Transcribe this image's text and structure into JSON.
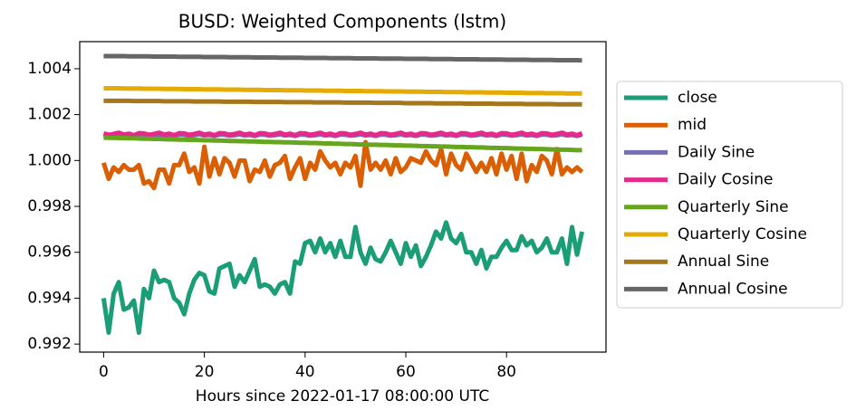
{
  "chart_data": {
    "type": "line",
    "title": "BUSD: Weighted Components (lstm)",
    "x_label": "Hours since 2022-01-17 08:00:00 UTC",
    "x": [
      0,
      1,
      2,
      3,
      4,
      5,
      6,
      7,
      8,
      9,
      10,
      11,
      12,
      13,
      14,
      15,
      16,
      17,
      18,
      19,
      20,
      21,
      22,
      23,
      24,
      25,
      26,
      27,
      28,
      29,
      30,
      31,
      32,
      33,
      34,
      35,
      36,
      37,
      38,
      39,
      40,
      41,
      42,
      43,
      44,
      45,
      46,
      47,
      48,
      49,
      50,
      51,
      52,
      53,
      54,
      55,
      56,
      57,
      58,
      59,
      60,
      61,
      62,
      63,
      64,
      65,
      66,
      67,
      68,
      69,
      70,
      71,
      72,
      73,
      74,
      75,
      76,
      77,
      78,
      79,
      80,
      81,
      82,
      83,
      84,
      85,
      86,
      87,
      88,
      89,
      90,
      91,
      92,
      93,
      94,
      95
    ],
    "xlim": [
      -4.75,
      99.75
    ],
    "xticks": [
      0,
      20,
      40,
      60,
      80
    ],
    "ylim": [
      0.99165,
      1.00518
    ],
    "yticks": [
      0.992,
      0.994,
      0.996,
      0.998,
      {
        "value": 1,
        "label": "1.000"
      },
      1.002,
      1.004
    ],
    "legend": "right",
    "series": [
      {
        "name": "close",
        "color": "#1b9e77",
        "values": [
          0.994,
          0.9925,
          0.9942,
          0.9947,
          0.9935,
          0.9936,
          0.9939,
          0.9925,
          0.9944,
          0.994,
          0.9952,
          0.9947,
          0.9948,
          0.9947,
          0.994,
          0.9938,
          0.9933,
          0.9942,
          0.9948,
          0.9951,
          0.995,
          0.9943,
          0.9942,
          0.9953,
          0.9954,
          0.9955,
          0.9945,
          0.995,
          0.9947,
          0.9952,
          0.9957,
          0.9945,
          0.9946,
          0.9945,
          0.9942,
          0.9946,
          0.9947,
          0.9942,
          0.9956,
          0.9955,
          0.9964,
          0.9965,
          0.996,
          0.9966,
          0.996,
          0.9964,
          0.9958,
          0.9965,
          0.9958,
          0.9958,
          0.9971,
          0.996,
          0.9955,
          0.9962,
          0.9957,
          0.9956,
          0.996,
          0.9965,
          0.996,
          0.9955,
          0.9964,
          0.9958,
          0.9963,
          0.9954,
          0.9958,
          0.9963,
          0.9969,
          0.9966,
          0.9973,
          0.9966,
          0.9964,
          0.9968,
          0.996,
          0.996,
          0.9955,
          0.9961,
          0.9953,
          0.9958,
          0.9958,
          0.9962,
          0.9965,
          0.9961,
          0.9961,
          0.9967,
          0.9963,
          0.9965,
          0.996,
          0.9962,
          0.9966,
          0.996,
          0.996,
          0.9966,
          0.9955,
          0.9971,
          0.9959,
          0.9969
        ]
      },
      {
        "name": "mid",
        "color": "#d95f02",
        "values": [
          0.9999,
          0.9992,
          0.9997,
          0.9995,
          0.9998,
          0.9996,
          0.9996,
          0.9998,
          0.999,
          0.9991,
          0.9988,
          0.9996,
          0.9996,
          0.999,
          0.9998,
          0.9998,
          1.0003,
          0.9995,
          0.9997,
          0.999,
          1.0006,
          0.9993,
          1.0001,
          0.9994,
          1.0001,
          0.9999,
          0.9993,
          1.0,
          1.0,
          0.9991,
          0.9996,
          0.9995,
          1.0,
          0.9993,
          0.9998,
          0.9999,
          1.0002,
          0.9992,
          0.9997,
          1.0001,
          0.9992,
          0.9999,
          0.9996,
          1.0004,
          1.0,
          0.9997,
          0.9999,
          0.9994,
          0.9999,
          0.9997,
          1.0002,
          0.9989,
          1.0008,
          0.9996,
          0.9999,
          0.9996,
          1.0,
          0.9994,
          1.0001,
          0.9995,
          0.9997,
          1.0001,
          1.0,
          0.9999,
          1.0004,
          1.0,
          0.9998,
          1.0005,
          0.9994,
          1.0003,
          0.9998,
          0.9996,
          1.0003,
          0.9999,
          0.9995,
          0.9999,
          0.9995,
          1.0001,
          0.9994,
          1.0003,
          0.9996,
          1.0002,
          0.9992,
          1.0003,
          0.9991,
          0.9998,
          0.9995,
          1.0002,
          1.0,
          0.9994,
          1.0005,
          0.9994,
          0.9997,
          0.9995,
          0.9997,
          0.9995
        ]
      },
      {
        "name": "Daily Sine",
        "color": "#7570b3",
        "values": [
          1.00112,
          1.00108,
          1.0011,
          1.00114,
          1.00109,
          1.00111,
          1.00107,
          1.00113,
          1.00112,
          1.00108,
          1.0011,
          1.00114,
          1.00109,
          1.00111,
          1.00107,
          1.00113,
          1.00112,
          1.00108,
          1.0011,
          1.00114,
          1.00109,
          1.00111,
          1.00107,
          1.00113,
          1.00112,
          1.00108,
          1.0011,
          1.00114,
          1.00109,
          1.00111,
          1.00107,
          1.00113,
          1.00112,
          1.00108,
          1.0011,
          1.00114,
          1.00109,
          1.00111,
          1.00107,
          1.00113,
          1.00112,
          1.00108,
          1.0011,
          1.00114,
          1.00109,
          1.00111,
          1.00107,
          1.00113,
          1.00112,
          1.00108,
          1.0011,
          1.00114,
          1.00109,
          1.00111,
          1.00107,
          1.00113,
          1.00112,
          1.00108,
          1.0011,
          1.00114,
          1.00109,
          1.00111,
          1.00107,
          1.00113,
          1.00112,
          1.00108,
          1.0011,
          1.00114,
          1.00109,
          1.00111,
          1.00107,
          1.00113,
          1.00112,
          1.00108,
          1.0011,
          1.00114,
          1.00109,
          1.00111,
          1.00107,
          1.00113,
          1.00112,
          1.00108,
          1.0011,
          1.00114,
          1.00109,
          1.00111,
          1.00107,
          1.00113,
          1.00112,
          1.00108,
          1.0011,
          1.00114,
          1.00109,
          1.00111,
          1.00107,
          1.00113
        ]
      },
      {
        "name": "Daily Cosine",
        "color": "#e7298a",
        "values": [
          1.00118,
          1.00112,
          1.00116,
          1.00121,
          1.00113,
          1.00117,
          1.0011,
          1.00119,
          1.00118,
          1.00112,
          1.00116,
          1.00121,
          1.00113,
          1.00117,
          1.0011,
          1.00119,
          1.00118,
          1.00112,
          1.00116,
          1.00121,
          1.00113,
          1.00117,
          1.0011,
          1.00119,
          1.00118,
          1.00112,
          1.00116,
          1.00121,
          1.00113,
          1.00117,
          1.0011,
          1.00119,
          1.00118,
          1.00112,
          1.00116,
          1.00121,
          1.00113,
          1.00117,
          1.0011,
          1.00119,
          1.00118,
          1.00112,
          1.00116,
          1.00121,
          1.00113,
          1.00117,
          1.0011,
          1.00119,
          1.00118,
          1.00112,
          1.00116,
          1.00121,
          1.00113,
          1.00117,
          1.0011,
          1.00119,
          1.00118,
          1.00112,
          1.00116,
          1.00121,
          1.00113,
          1.00117,
          1.0011,
          1.00119,
          1.00118,
          1.00112,
          1.00116,
          1.00121,
          1.00113,
          1.00117,
          1.0011,
          1.00119,
          1.00118,
          1.00112,
          1.00116,
          1.00121,
          1.00113,
          1.00117,
          1.0011,
          1.00119,
          1.00118,
          1.00112,
          1.00116,
          1.00121,
          1.00113,
          1.00117,
          1.0011,
          1.00119,
          1.00118,
          1.00112,
          1.00116,
          1.00121,
          1.00113,
          1.00117,
          1.0011,
          1.00119
        ]
      },
      {
        "name": "Quarterly Sine",
        "color": "#66a61e",
        "values": [
          1.001,
          1.00099,
          1.00099,
          1.00098,
          1.00098,
          1.00097,
          1.00097,
          1.00096,
          1.00095,
          1.00095,
          1.00094,
          1.00094,
          1.00093,
          1.00092,
          1.00092,
          1.00091,
          1.00091,
          1.0009,
          1.0009,
          1.00089,
          1.00088,
          1.00088,
          1.00087,
          1.00087,
          1.00086,
          1.00085,
          1.00085,
          1.00084,
          1.00084,
          1.00083,
          1.00083,
          1.00082,
          1.00081,
          1.00081,
          1.0008,
          1.0008,
          1.00079,
          1.00079,
          1.00078,
          1.00077,
          1.00077,
          1.00076,
          1.00076,
          1.00075,
          1.00074,
          1.00074,
          1.00073,
          1.00073,
          1.00072,
          1.00072,
          1.00071,
          1.0007,
          1.0007,
          1.00069,
          1.00069,
          1.00068,
          1.00068,
          1.00067,
          1.00066,
          1.00066,
          1.00065,
          1.00065,
          1.00064,
          1.00063,
          1.00063,
          1.00062,
          1.00062,
          1.00061,
          1.00061,
          1.0006,
          1.00059,
          1.00059,
          1.00058,
          1.00058,
          1.00057,
          1.00057,
          1.00056,
          1.00055,
          1.00055,
          1.00054,
          1.00054,
          1.00053,
          1.00052,
          1.00052,
          1.00051,
          1.00051,
          1.0005,
          1.0005,
          1.00049,
          1.00048,
          1.00048,
          1.00047,
          1.00047,
          1.00046,
          1.00045,
          1.00045
        ]
      },
      {
        "name": "Quarterly Cosine",
        "color": "#e6ab02",
        "values": [
          1.00315,
          1.00315,
          1.00315,
          1.00315,
          1.00314,
          1.00314,
          1.00314,
          1.00314,
          1.00313,
          1.00313,
          1.00313,
          1.00313,
          1.00312,
          1.00312,
          1.00312,
          1.00312,
          1.00311,
          1.00311,
          1.00311,
          1.00311,
          1.0031,
          1.0031,
          1.0031,
          1.0031,
          1.00309,
          1.00309,
          1.00309,
          1.00309,
          1.00308,
          1.00308,
          1.00308,
          1.00308,
          1.00307,
          1.00307,
          1.00307,
          1.00307,
          1.00306,
          1.00306,
          1.00306,
          1.00306,
          1.00305,
          1.00305,
          1.00305,
          1.00305,
          1.00304,
          1.00304,
          1.00304,
          1.00304,
          1.00303,
          1.00303,
          1.00303,
          1.00303,
          1.00302,
          1.00302,
          1.00302,
          1.00302,
          1.00301,
          1.00301,
          1.00301,
          1.00301,
          1.003,
          1.003,
          1.003,
          1.003,
          1.00299,
          1.00299,
          1.00299,
          1.00299,
          1.00298,
          1.00298,
          1.00298,
          1.00298,
          1.00297,
          1.00297,
          1.00297,
          1.00297,
          1.00296,
          1.00296,
          1.00296,
          1.00296,
          1.00295,
          1.00295,
          1.00295,
          1.00295,
          1.00294,
          1.00294,
          1.00294,
          1.00294,
          1.00293,
          1.00293,
          1.00293,
          1.00293,
          1.00292,
          1.00292,
          1.00292,
          1.00292
        ]
      },
      {
        "name": "Annual Sine",
        "color": "#a6761d",
        "values": [
          1.0026,
          1.0026,
          1.0026,
          1.0026,
          1.0026,
          1.0026,
          1.00259,
          1.00259,
          1.00259,
          1.00259,
          1.00259,
          1.00259,
          1.00258,
          1.00258,
          1.00258,
          1.00258,
          1.00258,
          1.00258,
          1.00257,
          1.00257,
          1.00257,
          1.00257,
          1.00257,
          1.00257,
          1.00256,
          1.00256,
          1.00256,
          1.00256,
          1.00256,
          1.00256,
          1.00255,
          1.00255,
          1.00255,
          1.00255,
          1.00255,
          1.00255,
          1.00254,
          1.00254,
          1.00254,
          1.00254,
          1.00254,
          1.00254,
          1.00253,
          1.00253,
          1.00253,
          1.00253,
          1.00253,
          1.00253,
          1.00252,
          1.00252,
          1.00252,
          1.00252,
          1.00252,
          1.00252,
          1.00251,
          1.00251,
          1.00251,
          1.00251,
          1.00251,
          1.00251,
          1.0025,
          1.0025,
          1.0025,
          1.0025,
          1.0025,
          1.0025,
          1.00249,
          1.00249,
          1.00249,
          1.00249,
          1.00249,
          1.00249,
          1.00248,
          1.00248,
          1.00248,
          1.00248,
          1.00248,
          1.00248,
          1.00247,
          1.00247,
          1.00247,
          1.00247,
          1.00247,
          1.00247,
          1.00246,
          1.00246,
          1.00246,
          1.00246,
          1.00246,
          1.00246,
          1.00245,
          1.00245,
          1.00245,
          1.00245,
          1.00245,
          1.00245
        ]
      },
      {
        "name": "Annual Cosine",
        "color": "#666666",
        "values": [
          1.00455,
          1.00455,
          1.00455,
          1.00455,
          1.00455,
          1.00454,
          1.00454,
          1.00454,
          1.00454,
          1.00454,
          1.00453,
          1.00453,
          1.00453,
          1.00453,
          1.00453,
          1.00452,
          1.00452,
          1.00452,
          1.00452,
          1.00452,
          1.00451,
          1.00451,
          1.00451,
          1.00451,
          1.00451,
          1.0045,
          1.0045,
          1.0045,
          1.0045,
          1.0045,
          1.00449,
          1.00449,
          1.00449,
          1.00449,
          1.00449,
          1.00448,
          1.00448,
          1.00448,
          1.00448,
          1.00448,
          1.00447,
          1.00447,
          1.00447,
          1.00447,
          1.00447,
          1.00446,
          1.00446,
          1.00446,
          1.00446,
          1.00446,
          1.00445,
          1.00445,
          1.00445,
          1.00445,
          1.00445,
          1.00444,
          1.00444,
          1.00444,
          1.00444,
          1.00444,
          1.00443,
          1.00443,
          1.00443,
          1.00443,
          1.00443,
          1.00442,
          1.00442,
          1.00442,
          1.00442,
          1.00442,
          1.00441,
          1.00441,
          1.00441,
          1.00441,
          1.00441,
          1.0044,
          1.0044,
          1.0044,
          1.0044,
          1.0044,
          1.00439,
          1.00439,
          1.00439,
          1.00439,
          1.00439,
          1.00438,
          1.00438,
          1.00438,
          1.00438,
          1.00438,
          1.00437,
          1.00437,
          1.00437,
          1.00437,
          1.00437,
          1.00436
        ]
      }
    ]
  }
}
